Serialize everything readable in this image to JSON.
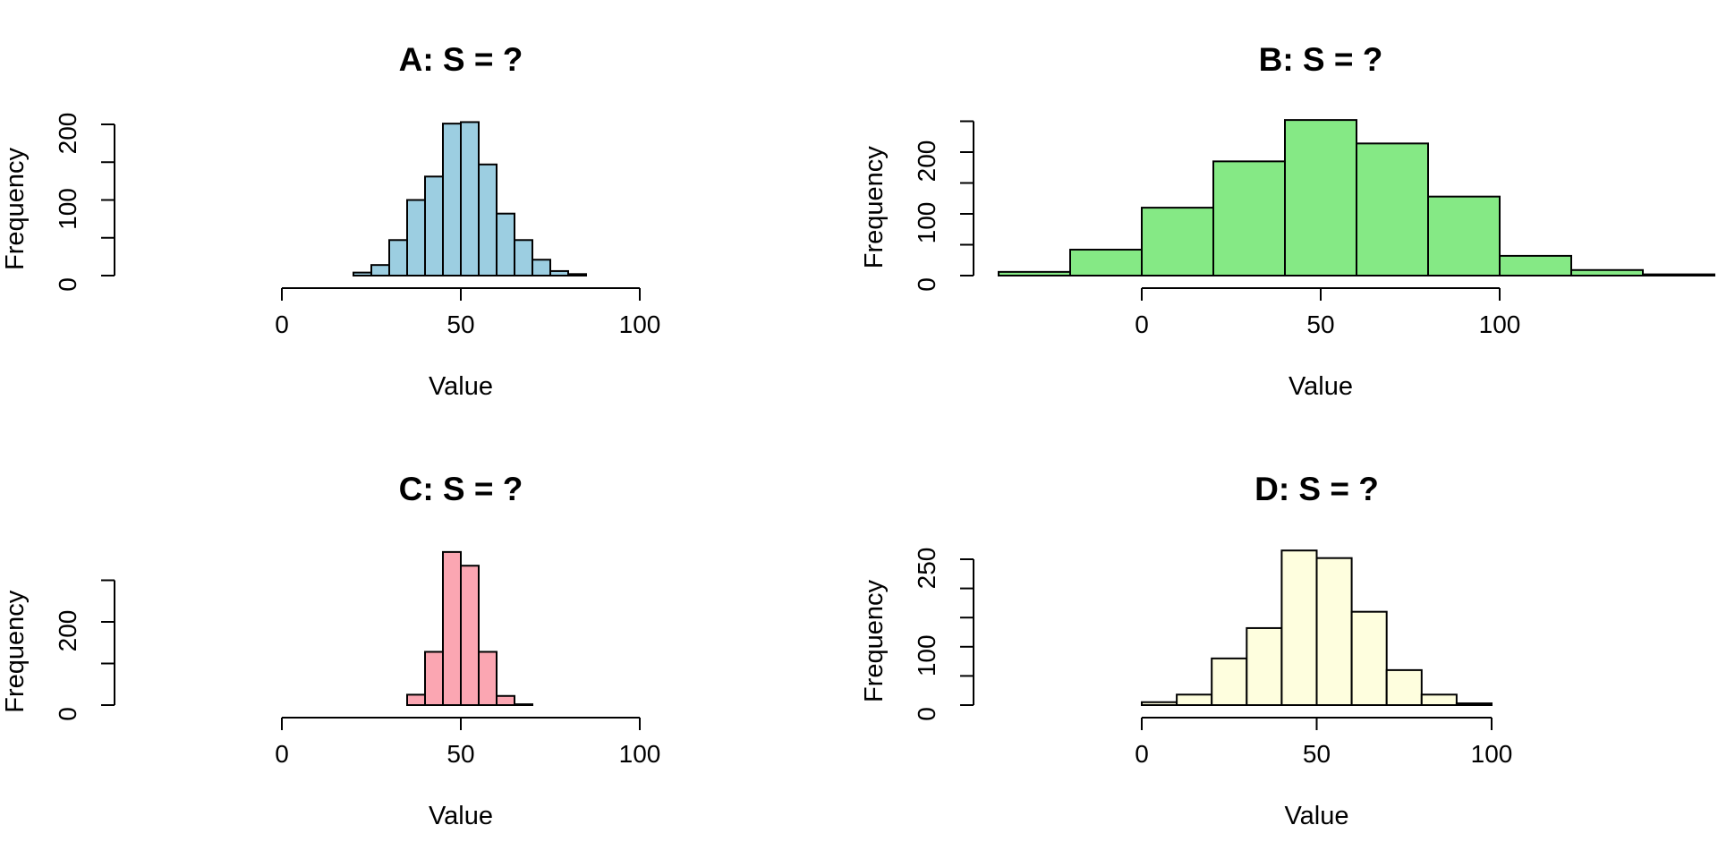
{
  "figure": {
    "background_color": "#ffffff",
    "axis_color": "#000000",
    "bar_border_color": "#000000"
  },
  "chart_data": [
    {
      "panel": "A",
      "type": "bar",
      "subtype": "histogram",
      "title": "A: S = ?",
      "xlabel": "Value",
      "ylabel": "Frequency",
      "bar_fill": "#9CCEE1",
      "bin_start": 20,
      "bin_width": 5,
      "counts": [
        4,
        14,
        47,
        100,
        131,
        201,
        203,
        147,
        82,
        47,
        21,
        6,
        2
      ],
      "x_ticks": [
        0,
        50,
        100
      ],
      "x_tick_labels": [
        "0",
        "50",
        "100"
      ],
      "y_ticks": [
        0,
        50,
        100,
        150,
        200
      ],
      "y_tick_labels": [
        "0",
        "",
        "100",
        "",
        "200"
      ],
      "x_axis_range": [
        0,
        100
      ],
      "y_axis_range": [
        0,
        200
      ],
      "grid": false,
      "legend": false
    },
    {
      "panel": "B",
      "type": "bar",
      "subtype": "histogram",
      "title": "B: S = ?",
      "xlabel": "Value",
      "ylabel": "Frequency",
      "bar_fill": "#85E985",
      "bin_start": -40,
      "bin_width": 20,
      "counts": [
        6,
        42,
        110,
        185,
        252,
        214,
        128,
        32,
        9,
        2
      ],
      "x_ticks": [
        0,
        50,
        100
      ],
      "x_tick_labels": [
        "0",
        "50",
        "100"
      ],
      "y_ticks": [
        0,
        50,
        100,
        150,
        200,
        250
      ],
      "y_tick_labels": [
        "0",
        "",
        "100",
        "",
        "200",
        ""
      ],
      "x_axis_range": [
        0,
        100
      ],
      "y_axis_range": [
        0,
        250
      ],
      "grid": false,
      "legend": false
    },
    {
      "panel": "C",
      "type": "bar",
      "subtype": "histogram",
      "title": "C: S = ?",
      "xlabel": "Value",
      "ylabel": "Frequency",
      "bar_fill": "#FBA6B2",
      "bin_start": 35,
      "bin_width": 5,
      "counts": [
        25,
        128,
        368,
        335,
        128,
        22,
        2
      ],
      "x_ticks": [
        0,
        50,
        100
      ],
      "x_tick_labels": [
        "0",
        "50",
        "100"
      ],
      "y_ticks": [
        0,
        100,
        200,
        300
      ],
      "y_tick_labels": [
        "0",
        "",
        "200",
        ""
      ],
      "x_axis_range": [
        0,
        100
      ],
      "y_axis_range": [
        0,
        300
      ],
      "grid": false,
      "legend": false
    },
    {
      "panel": "D",
      "type": "bar",
      "subtype": "histogram",
      "title": "D: S = ?",
      "xlabel": "Value",
      "ylabel": "Frequency",
      "bar_fill": "#FEFEDE",
      "bin_start": 0,
      "bin_width": 10,
      "counts": [
        5,
        18,
        80,
        132,
        265,
        252,
        160,
        60,
        18,
        3
      ],
      "x_ticks": [
        0,
        50,
        100
      ],
      "x_tick_labels": [
        "0",
        "50",
        "100"
      ],
      "y_ticks": [
        0,
        50,
        100,
        150,
        200,
        250
      ],
      "y_tick_labels": [
        "0",
        "",
        "100",
        "",
        "",
        "250"
      ],
      "x_axis_range": [
        0,
        100
      ],
      "y_axis_range": [
        0,
        250
      ],
      "grid": false,
      "legend": false
    }
  ]
}
